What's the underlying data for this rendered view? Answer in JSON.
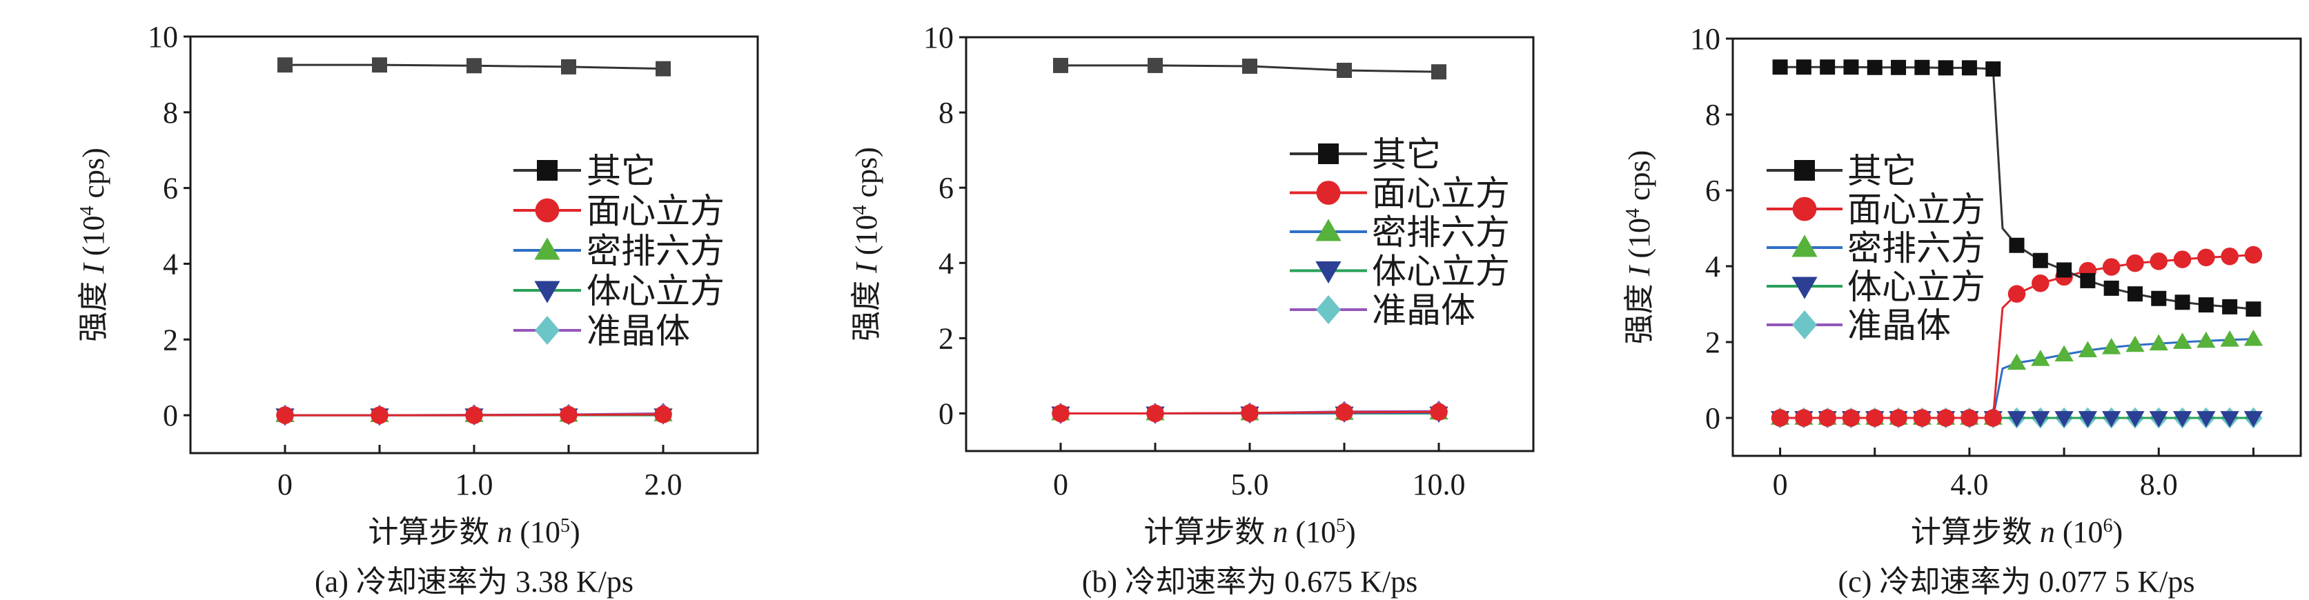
{
  "chart_data": [
    {
      "type": "line",
      "caption": "(a) 冷却速率为 3.38 K/ps",
      "xlabel": {
        "text": "计算步数 ",
        "var": "n",
        "unit": " (10",
        "exp": "5",
        "close": ")"
      },
      "ylabel": {
        "text": "强度 ",
        "var": "I",
        "unit": " (10",
        "exp": "4",
        "close": " cps)"
      },
      "xlim": [
        -0.5,
        2.5
      ],
      "ylim": [
        -1,
        10
      ],
      "xticks": [
        0,
        1.0,
        2.0
      ],
      "xtick_labels": [
        "0",
        "1.0",
        "2.0"
      ],
      "xminor": [
        0,
        0.5,
        1.0,
        1.5,
        2.0
      ],
      "yticks": [
        0,
        2,
        4,
        6,
        8,
        10
      ],
      "ytick_labels": [
        "0",
        "2",
        "4",
        "6",
        "8",
        "10"
      ],
      "legend_placement": "right",
      "x": [
        0,
        0.5,
        1.0,
        1.5,
        2.0
      ],
      "series": [
        {
          "name": "其它",
          "values": [
            9.25,
            9.25,
            9.23,
            9.2,
            9.15
          ]
        },
        {
          "name": "面心立方",
          "values": [
            0,
            0,
            0,
            0.01,
            0.02
          ]
        },
        {
          "name": "密排六方",
          "values": [
            0,
            0,
            0,
            0.01,
            0.02
          ]
        },
        {
          "name": "体心立方",
          "values": [
            0,
            0,
            0,
            0,
            0
          ]
        },
        {
          "name": "准晶体",
          "values": [
            0,
            0,
            0.01,
            0.02,
            0.05
          ]
        }
      ]
    },
    {
      "type": "line",
      "caption": "(b) 冷却速率为 0.675 K/ps",
      "xlabel": {
        "text": "计算步数 ",
        "var": "n",
        "unit": " (10",
        "exp": "5",
        "close": ")"
      },
      "ylabel": {
        "text": "强度 ",
        "var": "I",
        "unit": " (10",
        "exp": "4",
        "close": " cps)"
      },
      "xlim": [
        -2.5,
        12.5
      ],
      "ylim": [
        -1,
        10
      ],
      "xticks": [
        0,
        5.0,
        10.0
      ],
      "xtick_labels": [
        "0",
        "5.0",
        "10.0"
      ],
      "xminor": [
        0,
        2.5,
        5.0,
        7.5,
        10.0
      ],
      "yticks": [
        0,
        2,
        4,
        6,
        8,
        10
      ],
      "ytick_labels": [
        "0",
        "2",
        "4",
        "6",
        "8",
        "10"
      ],
      "legend_placement": "right",
      "x": [
        0,
        2.5,
        5.0,
        7.5,
        10.0
      ],
      "series": [
        {
          "name": "其它",
          "values": [
            9.25,
            9.25,
            9.23,
            9.12,
            9.08
          ]
        },
        {
          "name": "面心立方",
          "values": [
            0,
            0,
            0.01,
            0.03,
            0.04
          ]
        },
        {
          "name": "密排六方",
          "values": [
            0,
            0,
            0,
            0.01,
            0.02
          ]
        },
        {
          "name": "体心立方",
          "values": [
            0,
            0,
            0,
            0,
            0
          ]
        },
        {
          "name": "准晶体",
          "values": [
            0,
            0,
            0.01,
            0.05,
            0.06
          ]
        }
      ]
    },
    {
      "type": "line",
      "caption": "(c) 冷却速率为 0.077 5 K/ps",
      "xlabel": {
        "text": "计算步数 ",
        "var": "n",
        "unit": " (10",
        "exp": "6",
        "close": ")"
      },
      "ylabel": {
        "text": "强度 ",
        "var": "I",
        "unit": " (10",
        "exp": "4",
        "close": " cps)"
      },
      "xlim": [
        -1,
        11
      ],
      "ylim": [
        -1,
        10
      ],
      "xticks": [
        0,
        4.0,
        8.0
      ],
      "xtick_labels": [
        "0",
        "4.0",
        "8.0"
      ],
      "xminor": [
        0,
        2,
        4,
        6,
        8,
        10
      ],
      "yticks": [
        0,
        2,
        4,
        6,
        8,
        10
      ],
      "ytick_labels": [
        "0",
        "2",
        "4",
        "6",
        "8",
        "10"
      ],
      "legend_placement": "left",
      "x": [
        0,
        0.5,
        1.0,
        1.5,
        2.0,
        2.5,
        3.0,
        3.5,
        4.0,
        4.5,
        4.7,
        5.0,
        5.5,
        6.0,
        6.5,
        7.0,
        7.5,
        8.0,
        8.5,
        9.0,
        9.5,
        10.0
      ],
      "series": [
        {
          "name": "其它",
          "values": [
            9.25,
            9.25,
            9.25,
            9.25,
            9.24,
            9.24,
            9.24,
            9.23,
            9.23,
            9.2,
            5.0,
            4.55,
            4.15,
            3.9,
            3.62,
            3.42,
            3.27,
            3.15,
            3.05,
            2.98,
            2.93,
            2.87
          ]
        },
        {
          "name": "面心立方",
          "values": [
            0,
            0,
            0,
            0,
            0,
            0,
            0,
            0,
            0,
            0,
            2.9,
            3.27,
            3.55,
            3.72,
            3.88,
            3.98,
            4.08,
            4.13,
            4.18,
            4.23,
            4.26,
            4.3
          ]
        },
        {
          "name": "密排六方",
          "values": [
            0,
            0,
            0,
            0,
            0,
            0,
            0,
            0,
            0,
            0,
            1.3,
            1.45,
            1.55,
            1.67,
            1.78,
            1.86,
            1.92,
            1.96,
            2.0,
            2.03,
            2.06,
            2.08
          ]
        },
        {
          "name": "体心立方",
          "values": [
            0,
            0,
            0,
            0,
            0,
            0,
            0,
            0,
            0,
            0,
            0,
            0,
            0,
            0,
            0,
            0,
            0,
            0,
            0,
            0,
            0,
            0
          ]
        },
        {
          "name": "准晶体",
          "values": [
            0,
            0,
            0,
            0,
            0,
            0,
            0,
            0,
            0,
            0,
            0,
            0,
            0,
            0,
            0,
            0,
            0,
            0,
            0,
            0,
            0,
            0
          ]
        }
      ]
    }
  ],
  "styles": [
    {
      "marker": "square",
      "line_color": "#333333",
      "marker_color": "#111111"
    },
    {
      "marker": "circle",
      "line_color": "#e0262b",
      "marker_color": "#e0262b"
    },
    {
      "marker": "triangle-up",
      "line_color": "#2f6fc6",
      "marker_color": "#56b23a"
    },
    {
      "marker": "triangle-down",
      "line_color": "#2aa05a",
      "marker_color": "#2b3f94"
    },
    {
      "marker": "diamond",
      "line_color": "#9457b8",
      "marker_color": "#6cc6c8"
    }
  ]
}
